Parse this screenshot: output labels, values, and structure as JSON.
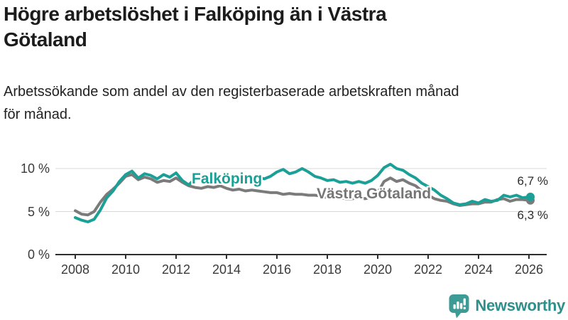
{
  "page": {
    "title": "Högre arbetslöshet i Falköping än i Västra\nGötaland",
    "subtitle": "Arbetssökande som andel av den registerbaserade arbetskraften månad\nför månad."
  },
  "branding": {
    "logo_text": "Newsworthy",
    "logo_color": "#2f908b",
    "icon_name": "bar-chart-speech-bubble-icon",
    "icon_color": "#3d9b96"
  },
  "colors": {
    "falkoping": "#1aa096",
    "vastra_gotaland": "#7b7b7b",
    "gridline": "#d9d9d9",
    "axis": "#2e2e2e",
    "tick_text": "#3a3a3a"
  },
  "chart_data": {
    "type": "line",
    "title": "",
    "xlabel": "",
    "ylabel": "",
    "unit": "%",
    "x_start": 2008.0,
    "x_step_years": 0.25,
    "x_end": 2026.0,
    "x_ticks": [
      2008,
      2010,
      2012,
      2014,
      2016,
      2018,
      2020,
      2022,
      2024,
      2026
    ],
    "y_ticks": [
      {
        "value": 0,
        "label": "0 %"
      },
      {
        "value": 5,
        "label": "5 %"
      },
      {
        "value": 10,
        "label": "10 %"
      }
    ],
    "ylim": [
      0,
      11
    ],
    "grid": "horizontal",
    "legend": "inline-labels",
    "series": [
      {
        "name": "Falköping",
        "color": "#1aa096",
        "end_label": "6,7 %",
        "end_value": 6.7,
        "values": [
          4.3,
          4.0,
          3.8,
          4.1,
          5.2,
          6.6,
          7.4,
          8.5,
          9.3,
          9.7,
          8.9,
          9.4,
          9.2,
          8.8,
          9.3,
          9.0,
          9.5,
          8.6,
          8.1,
          8.8,
          9.0,
          8.7,
          8.9,
          8.7,
          8.6,
          8.8,
          8.9,
          8.7,
          8.8,
          9.0,
          8.8,
          9.1,
          9.6,
          9.9,
          9.4,
          9.6,
          10.0,
          9.6,
          9.1,
          8.9,
          8.6,
          8.7,
          8.4,
          8.5,
          8.3,
          8.5,
          8.3,
          8.6,
          9.2,
          10.1,
          10.5,
          10.0,
          9.8,
          9.3,
          8.9,
          8.3,
          7.9,
          7.5,
          6.9,
          6.5,
          6.0,
          5.8,
          5.9,
          6.2,
          6.0,
          6.4,
          6.2,
          6.3,
          6.9,
          6.7,
          6.9,
          6.6,
          6.7
        ]
      },
      {
        "name": "Västra Götaland",
        "color": "#7b7b7b",
        "end_label": "6,3 %",
        "end_value": 6.3,
        "values": [
          5.1,
          4.7,
          4.6,
          5.0,
          6.1,
          7.0,
          7.6,
          8.3,
          9.1,
          9.3,
          8.7,
          9.0,
          8.8,
          8.4,
          8.6,
          8.5,
          8.9,
          8.4,
          8.0,
          7.8,
          7.7,
          7.9,
          7.8,
          8.0,
          7.7,
          7.5,
          7.6,
          7.4,
          7.5,
          7.4,
          7.3,
          7.2,
          7.2,
          7.0,
          7.1,
          7.0,
          7.0,
          6.9,
          6.9,
          6.8,
          6.6,
          6.7,
          6.6,
          6.5,
          6.5,
          6.6,
          6.5,
          6.7,
          7.2,
          8.5,
          8.9,
          8.5,
          8.7,
          8.3,
          8.0,
          7.4,
          6.9,
          6.5,
          6.3,
          6.2,
          5.9,
          5.7,
          5.8,
          5.9,
          5.9,
          6.1,
          6.1,
          6.4,
          6.5,
          6.2,
          6.4,
          6.4,
          6.3
        ]
      }
    ]
  }
}
